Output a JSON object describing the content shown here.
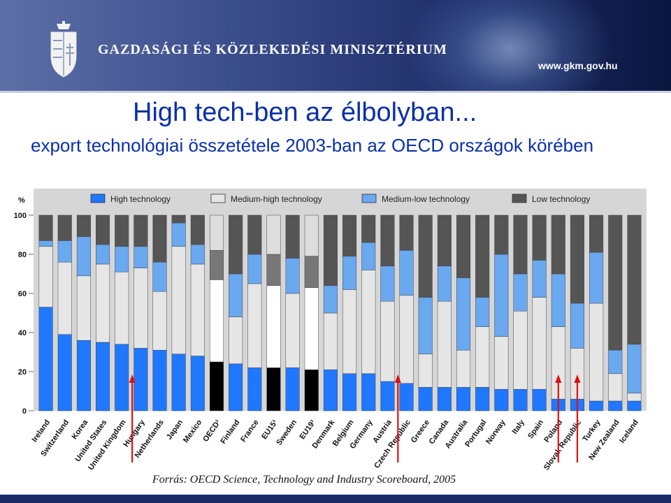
{
  "header": {
    "ministry_name": "GAZDASÁGI ÉS KÖZLEKEDÉSI MINISZTÉRIUM",
    "url": "www.gkm.gov.hu"
  },
  "slide": {
    "title": "High tech-ben az élbolyban...",
    "subtitle": "export technológiai összetétele 2003-ban az OECD országok körében",
    "source": "Forrás: OECD Science, Technology and Industry Scoreboard, 2005"
  },
  "colors": {
    "high": "#1f78ff",
    "medium_high": "#e6e6e6",
    "medium_low": "#6aa8f0",
    "low": "#555555",
    "aggregate_high": "#000000",
    "aggregate_medium_high": "#ffffff",
    "aggregate_medium_low": "#777777",
    "aggregate_low": "#dddddd",
    "arrow": "#dd1111",
    "plot_bg": "#d6d6d6"
  },
  "chart_data": {
    "type": "bar",
    "stacked": true,
    "title": "",
    "ylabel": "%",
    "ylim": [
      0,
      100
    ],
    "yticks": [
      0,
      20,
      40,
      60,
      80,
      100
    ],
    "legend_position": "top",
    "categories": [
      "Ireland",
      "Switzerland",
      "Korea",
      "United States",
      "United Kingdom",
      "Hungary",
      "Netherlands",
      "Japan",
      "Mexico",
      "OECD¹",
      "Finland",
      "France",
      "EU15¹",
      "Sweden",
      "EU19¹",
      "Denmark",
      "Belgium",
      "Germany",
      "Austria",
      "Czech Republic",
      "Greece",
      "Canada",
      "Australia",
      "Portugal",
      "Norway",
      "Italy",
      "Spain",
      "Poland",
      "Slovak Republic",
      "Turkey",
      "New Zealand",
      "Iceland"
    ],
    "aggregate_categories": [
      "OECD¹",
      "EU15¹",
      "EU19¹"
    ],
    "highlighted_categories": [
      "Hungary",
      "Czech Republic",
      "Poland",
      "Slovak Republic"
    ],
    "series": [
      {
        "name": "High technology",
        "values": [
          53,
          39,
          36,
          35,
          34,
          32,
          31,
          29,
          28,
          25,
          24,
          22,
          22,
          22,
          21,
          21,
          19,
          19,
          15,
          14,
          12,
          12,
          12,
          12,
          11,
          11,
          11,
          6,
          6,
          5,
          5,
          5
        ]
      },
      {
        "name": "Medium-high technology",
        "values": [
          31,
          37,
          33,
          40,
          37,
          41,
          30,
          55,
          47,
          42,
          24,
          43,
          42,
          38,
          42,
          29,
          43,
          53,
          41,
          45,
          17,
          44,
          19,
          31,
          27,
          40,
          47,
          37,
          26,
          50,
          14,
          4
        ]
      },
      {
        "name": "Medium-low technology",
        "values": [
          3,
          11,
          20,
          10,
          13,
          11,
          15,
          12,
          10,
          15,
          22,
          15,
          16,
          18,
          16,
          14,
          17,
          14,
          18,
          23,
          29,
          18,
          37,
          15,
          42,
          19,
          19,
          27,
          23,
          26,
          12,
          25
        ]
      },
      {
        "name": "Low technology",
        "values": [
          13,
          13,
          11,
          15,
          16,
          16,
          24,
          4,
          15,
          18,
          30,
          20,
          20,
          22,
          21,
          36,
          21,
          14,
          26,
          18,
          42,
          26,
          32,
          42,
          20,
          30,
          23,
          30,
          45,
          19,
          69,
          66
        ]
      }
    ]
  }
}
